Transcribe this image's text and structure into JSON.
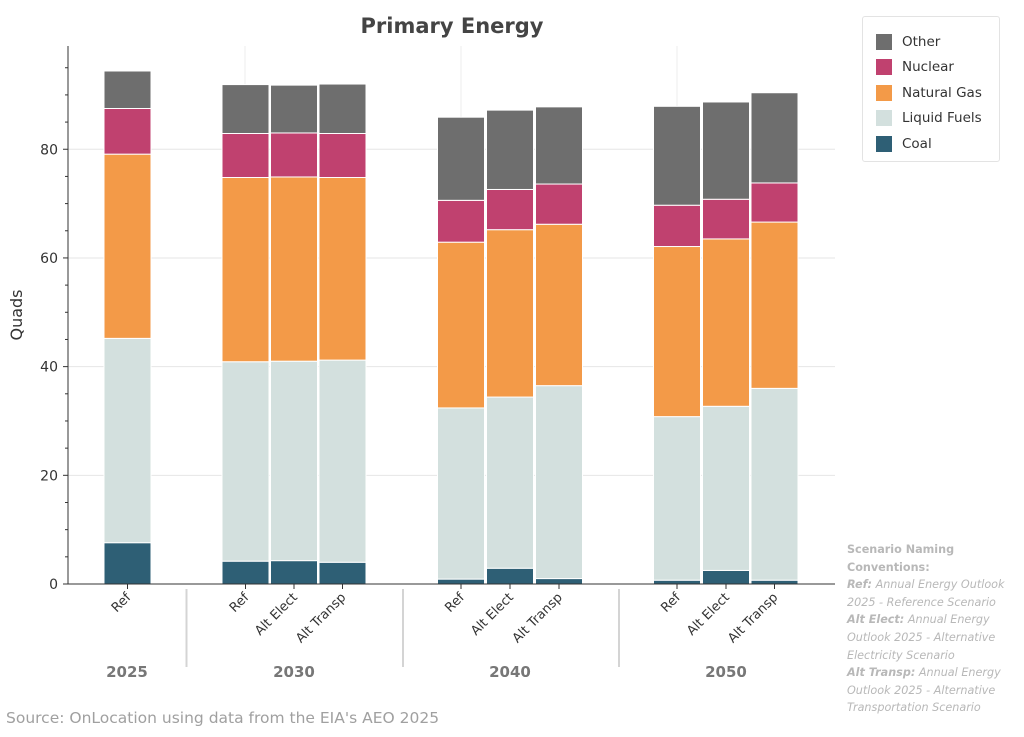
{
  "chart_data": {
    "type": "bar",
    "stacked": true,
    "title": "Primary Energy",
    "ylabel": "Quads",
    "ylim": [
      0,
      99
    ],
    "yticks": [
      0,
      20,
      40,
      60,
      80
    ],
    "grid": true,
    "legend_position": "top-right",
    "groups": [
      {
        "label": "2025",
        "bars": [
          "Ref"
        ]
      },
      {
        "label": "2030",
        "bars": [
          "Ref",
          "Alt Elect",
          "Alt Transp"
        ]
      },
      {
        "label": "2040",
        "bars": [
          "Ref",
          "Alt Elect",
          "Alt Transp"
        ]
      },
      {
        "label": "2050",
        "bars": [
          "Ref",
          "Alt Elect",
          "Alt Transp"
        ]
      }
    ],
    "series": [
      {
        "name": "Coal",
        "color": "#2e5f75",
        "values": [
          7.6,
          4.2,
          4.3,
          4.0,
          0.9,
          2.9,
          1.0,
          0.7,
          2.5,
          0.7
        ]
      },
      {
        "name": "Liquid Fuels",
        "color": "#d3e0de",
        "values": [
          37.6,
          36.7,
          36.7,
          37.2,
          31.5,
          31.5,
          35.5,
          30.1,
          30.2,
          35.3
        ]
      },
      {
        "name": "Natural Gas",
        "color": "#f39a48",
        "values": [
          33.9,
          33.9,
          33.9,
          33.6,
          30.5,
          30.8,
          29.7,
          31.3,
          30.8,
          30.6
        ]
      },
      {
        "name": "Nuclear",
        "color": "#c0416f",
        "values": [
          8.4,
          8.1,
          8.1,
          8.1,
          7.7,
          7.4,
          7.4,
          7.6,
          7.3,
          7.2
        ]
      },
      {
        "name": "Other",
        "color": "#6e6e6e",
        "values": [
          6.9,
          9.0,
          8.8,
          9.1,
          15.3,
          14.6,
          14.2,
          18.2,
          17.9,
          16.6
        ]
      }
    ]
  },
  "legend": [
    {
      "name": "Other",
      "color": "#6e6e6e"
    },
    {
      "name": "Nuclear",
      "color": "#c0416f"
    },
    {
      "name": "Natural Gas",
      "color": "#f39a48"
    },
    {
      "name": "Liquid Fuels",
      "color": "#d3e0de"
    },
    {
      "name": "Coal",
      "color": "#2e5f75"
    }
  ],
  "note": {
    "heading": "Scenario Naming Conventions:",
    "items": [
      {
        "key": "Ref:",
        "text": "Annual Energy Outlook 2025 - Reference Scenario"
      },
      {
        "key": "Alt Elect:",
        "text": "Annual Energy Outlook 2025 - Alternative Electricity Scenario"
      },
      {
        "key": "Alt Transp:",
        "text": "Annual Energy Outlook 2025 - Alternative Transportation Scenario"
      }
    ]
  },
  "source": "Source: OnLocation using data from the EIA's AEO 2025"
}
